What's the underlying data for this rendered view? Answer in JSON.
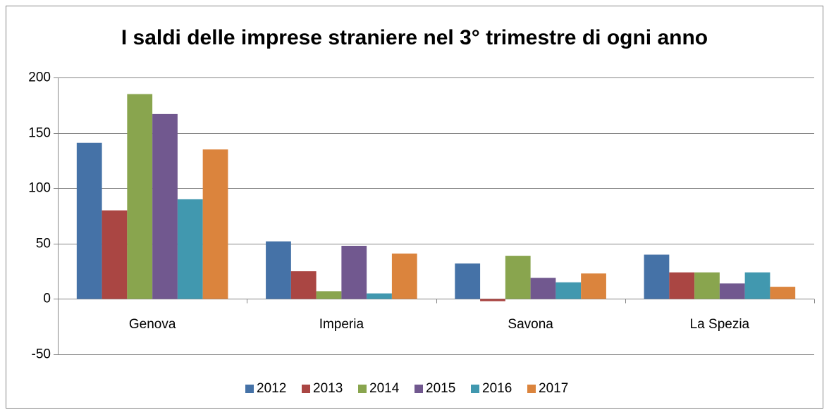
{
  "chart_data": {
    "type": "bar",
    "title": "I saldi delle imprese straniere nel 3° trimestre di ogni anno",
    "categories": [
      "Genova",
      "Imperia",
      "Savona",
      "La Spezia"
    ],
    "series": [
      {
        "name": "2012",
        "color": "#4572a7",
        "values": [
          141,
          52,
          32,
          40
        ]
      },
      {
        "name": "2013",
        "color": "#aa4643",
        "values": [
          80,
          25,
          -2,
          24
        ]
      },
      {
        "name": "2014",
        "color": "#89a54e",
        "values": [
          185,
          7,
          39,
          24
        ]
      },
      {
        "name": "2015",
        "color": "#71588f",
        "values": [
          167,
          48,
          19,
          14
        ]
      },
      {
        "name": "2016",
        "color": "#4198af",
        "values": [
          90,
          5,
          15,
          24
        ]
      },
      {
        "name": "2017",
        "color": "#db843d",
        "values": [
          135,
          41,
          23,
          11
        ]
      }
    ],
    "ylim": [
      -50,
      200
    ],
    "yticks": [
      -50,
      0,
      50,
      100,
      150,
      200
    ],
    "grid": true,
    "legend": "bottom"
  }
}
